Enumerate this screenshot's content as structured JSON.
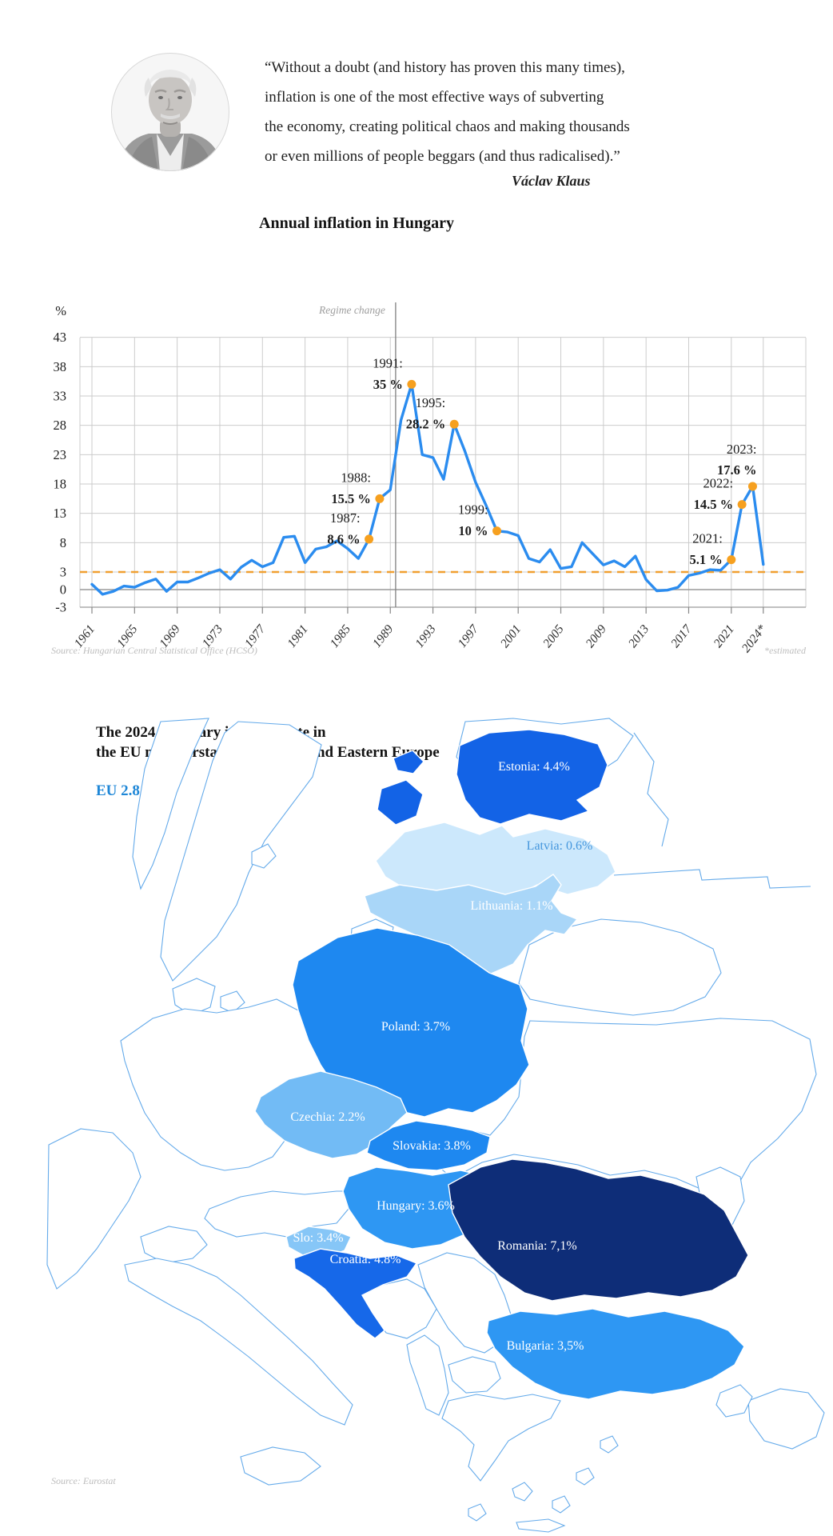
{
  "quote": {
    "lines": [
      "“Without a doubt (and history has proven this many times),",
      "inflation is one of the most effective ways of subverting",
      "the economy, creating political chaos and making thousands",
      "or even millions of people beggars (and thus radicalised).”"
    ],
    "attribution": "Václav Klaus"
  },
  "chart": {
    "title": "Annual inflation in Hungary",
    "source": "Source: Hungarian Central Statistical Office (HCSO)",
    "footnote": "*estimated"
  },
  "chart_data": {
    "type": "line",
    "title": "Annual inflation in Hungary",
    "ylabel": "%",
    "ylim": [
      -3,
      43
    ],
    "y_ticks": [
      43,
      38,
      33,
      28,
      23,
      18,
      13,
      8,
      3,
      0,
      -3
    ],
    "x_ticks": [
      "1961",
      "1965",
      "1969",
      "1973",
      "1977",
      "1981",
      "1985",
      "1989",
      "1993",
      "1997",
      "2001",
      "2005",
      "2009",
      "2013",
      "2017",
      "2021",
      "2024*"
    ],
    "target_line": 3,
    "line_color": "#2b8cef",
    "dot_color": "#f6a01f",
    "target_color": "#f0a030",
    "regime_change": {
      "label": "Regime change",
      "year": 1989.5
    },
    "years": [
      1961,
      1962,
      1963,
      1964,
      1965,
      1966,
      1967,
      1968,
      1969,
      1970,
      1971,
      1972,
      1973,
      1974,
      1975,
      1976,
      1977,
      1978,
      1979,
      1980,
      1981,
      1982,
      1983,
      1984,
      1985,
      1986,
      1987,
      1988,
      1989,
      1990,
      1991,
      1992,
      1993,
      1994,
      1995,
      1996,
      1997,
      1998,
      1999,
      2000,
      2001,
      2002,
      2003,
      2004,
      2005,
      2006,
      2007,
      2008,
      2009,
      2010,
      2011,
      2012,
      2013,
      2014,
      2015,
      2016,
      2017,
      2018,
      2019,
      2020,
      2021,
      2022,
      2023,
      2024
    ],
    "values": [
      0.9,
      -0.8,
      -0.3,
      0.6,
      0.4,
      1.2,
      1.8,
      -0.3,
      1.3,
      1.3,
      2.0,
      2.8,
      3.4,
      1.8,
      3.8,
      5.0,
      3.9,
      4.6,
      8.9,
      9.1,
      4.6,
      6.9,
      7.3,
      8.3,
      7.0,
      5.3,
      8.6,
      15.5,
      17.0,
      28.9,
      35.0,
      23.0,
      22.5,
      18.8,
      28.2,
      23.6,
      18.3,
      14.3,
      10.0,
      9.8,
      9.2,
      5.3,
      4.7,
      6.8,
      3.6,
      3.9,
      8.0,
      6.1,
      4.2,
      4.9,
      3.9,
      5.7,
      1.7,
      -0.2,
      -0.1,
      0.4,
      2.4,
      2.8,
      3.4,
      3.3,
      5.1,
      14.5,
      17.6,
      4.3
    ],
    "annotations": [
      {
        "year": 1987,
        "value": 8.6,
        "year_label": "1987:",
        "value_label": "8.6 %"
      },
      {
        "year": 1988,
        "value": 15.5,
        "year_label": "1988:",
        "value_label": "15.5 %"
      },
      {
        "year": 1991,
        "value": 35,
        "year_label": "1991:",
        "value_label": "35 %"
      },
      {
        "year": 1995,
        "value": 28.2,
        "year_label": "1995:",
        "value_label": "28.2 %"
      },
      {
        "year": 1999,
        "value": 10,
        "year_label": "1999:",
        "value_label": "10 %"
      },
      {
        "year": 2021,
        "value": 5.1,
        "year_label": "2021:",
        "value_label": "5.1 %"
      },
      {
        "year": 2022,
        "value": 14.5,
        "year_label": "2022:",
        "value_label": "14.5 %"
      },
      {
        "year": 2023,
        "value": 17.6,
        "year_label": "2023:",
        "value_label": "17.6 %",
        "placement": "above"
      }
    ]
  },
  "map": {
    "title_line1": "The 2024 February inflation rate in",
    "title_line2": "the EU memberstates of Central and Eastern Europe",
    "eu_label": "EU 2.8%",
    "source": "Source: Eurostat",
    "countries": [
      {
        "name": "Estonia",
        "label": "Estonia: 4.4%",
        "value": 4.4,
        "fill": "#1363e6",
        "label_color": "#ffffff"
      },
      {
        "name": "Latvia",
        "label": "Latvia: 0.6%",
        "value": 0.6,
        "fill": "#cce8fc",
        "label_color": "#4496dd"
      },
      {
        "name": "Lithuania",
        "label": "Lithuania: 1.1%",
        "value": 1.1,
        "fill": "#a9d6f8",
        "label_color": "#ffffff"
      },
      {
        "name": "Poland",
        "label": "Poland: 3.7%",
        "value": 3.7,
        "fill": "#1e88f0",
        "label_color": "#ffffff"
      },
      {
        "name": "Czechia",
        "label": "Czechia: 2.2%",
        "value": 2.2,
        "fill": "#72bbf5",
        "label_color": "#ffffff"
      },
      {
        "name": "Slovakia",
        "label": "Slovakia: 3.8%",
        "value": 3.8,
        "fill": "#1e88f0",
        "label_color": "#ffffff"
      },
      {
        "name": "Hungary",
        "label": "Hungary: 3.6%",
        "value": 3.6,
        "fill": "#2e97f3",
        "label_color": "#ffffff"
      },
      {
        "name": "Slovenia",
        "label": "Slo: 3.4%",
        "value": 3.4,
        "fill": "#86c6f7",
        "label_color": "#ffffff"
      },
      {
        "name": "Croatia",
        "label": "Croatia: 4.8%",
        "value": 4.8,
        "fill": "#1668e9",
        "label_color": "#ffffff"
      },
      {
        "name": "Romania",
        "label": "Romania: 7,1%",
        "value": 7.1,
        "fill": "#0e2d78",
        "label_color": "#ffffff"
      },
      {
        "name": "Bulgaria",
        "label": "Bulgaria: 3,5%",
        "value": 3.5,
        "fill": "#2e97f3",
        "label_color": "#ffffff"
      }
    ]
  }
}
